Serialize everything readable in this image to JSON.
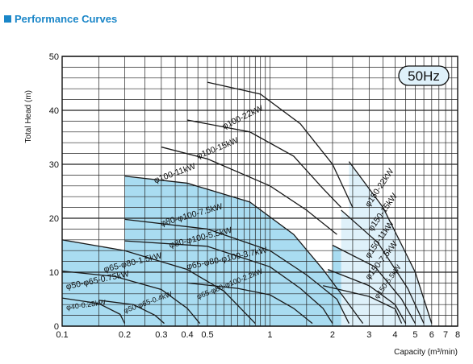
{
  "header": {
    "title": "Performance Curves"
  },
  "chart_data": {
    "type": "area",
    "title": "Performance Curves",
    "frequency": "50Hz",
    "ylabel": "Total Head (m)",
    "xlabel": "Capacity (m³/min)",
    "x_scale": "log",
    "xlim": [
      0.1,
      8
    ],
    "ylim": [
      0,
      50
    ],
    "grid": true,
    "x_ticks": [
      "0.1",
      "0.2",
      "0.3",
      "0.4",
      "0.5",
      "1",
      "2",
      "3",
      "4",
      "5",
      "6",
      "7",
      "8"
    ],
    "y_ticks": [
      "0",
      "10",
      "20",
      "30",
      "40",
      "50"
    ],
    "colors": {
      "shade": "#a9dcf1",
      "shade_light": "#dff1fa",
      "line": "#1a1a1a",
      "title": "#1a86c8"
    },
    "series": [
      {
        "name": "φ40-0.25kW",
        "shaded": true,
        "points": [
          [
            0.1,
            5.2
          ],
          [
            0.15,
            4.2
          ],
          [
            0.19,
            2.2
          ],
          [
            0.2,
            0.5
          ]
        ]
      },
      {
        "name": "φ50-φ65-0.4kW",
        "shaded": false,
        "points": [
          [
            0.15,
            4.8
          ],
          [
            0.22,
            4.0
          ],
          [
            0.28,
            2.0
          ],
          [
            0.31,
            0.5
          ]
        ]
      },
      {
        "name": "φ50-φ65-0.75kW",
        "shaded": true,
        "points": [
          [
            0.1,
            10.2
          ],
          [
            0.18,
            9.2
          ],
          [
            0.3,
            6.8
          ],
          [
            0.4,
            3.3
          ],
          [
            0.46,
            0.5
          ]
        ]
      },
      {
        "name": "φ65-φ80-1.5kW",
        "shaded": true,
        "points": [
          [
            0.1,
            16.0
          ],
          [
            0.2,
            14.0
          ],
          [
            0.4,
            10.5
          ],
          [
            0.6,
            6.5
          ],
          [
            0.85,
            0.5
          ]
        ]
      },
      {
        "name": "φ65-φ80-φ100-2.2kW",
        "shaded": false,
        "points": [
          [
            0.4,
            8.0
          ],
          [
            0.7,
            7.0
          ],
          [
            1.0,
            5.8
          ],
          [
            1.3,
            3.3
          ],
          [
            1.6,
            0.5
          ]
        ]
      },
      {
        "name": "φ65-φ80-φ100-3.7kW",
        "shaded": false,
        "points": [
          [
            0.2,
            15.8
          ],
          [
            0.5,
            14.8
          ],
          [
            1.0,
            11.0
          ],
          [
            1.4,
            7.0
          ],
          [
            1.8,
            3.3
          ],
          [
            2.0,
            0.5
          ]
        ]
      },
      {
        "name": "φ80-φ100-5.5kW",
        "shaded": true,
        "points": [
          [
            0.2,
            19.8
          ],
          [
            0.5,
            18.0
          ],
          [
            1.0,
            14.0
          ],
          [
            1.5,
            9.5
          ],
          [
            2.1,
            5.0
          ],
          [
            2.4,
            0.5
          ]
        ]
      },
      {
        "name": "φ80-φ100-7.5kW",
        "shaded": true,
        "points": [
          [
            0.2,
            27.8
          ],
          [
            0.4,
            26.5
          ],
          [
            0.8,
            23.0
          ],
          [
            1.3,
            17.0
          ],
          [
            1.8,
            10.5
          ],
          [
            2.3,
            5.0
          ],
          [
            2.8,
            0.5
          ]
        ]
      },
      {
        "name": "φ100-11kW",
        "shaded": false,
        "points": [
          [
            0.3,
            33.2
          ],
          [
            0.5,
            31.0
          ],
          [
            1.0,
            26.0
          ],
          [
            1.5,
            21.5
          ],
          [
            2.1,
            17.0
          ]
        ]
      },
      {
        "name": "φ100-15kW",
        "shaded": false,
        "points": [
          [
            0.4,
            38.2
          ],
          [
            0.8,
            36.0
          ],
          [
            1.3,
            31.5
          ],
          [
            1.8,
            25.5
          ],
          [
            2.2,
            22.0
          ]
        ]
      },
      {
        "name": "φ100-22kW",
        "shaded": false,
        "points": [
          [
            0.5,
            45.2
          ],
          [
            0.9,
            43.0
          ],
          [
            1.4,
            37.5
          ],
          [
            2.0,
            30.0
          ],
          [
            2.5,
            22.0
          ]
        ]
      },
      {
        "name": "φ150-5.5kW",
        "shaded": true,
        "points": [
          [
            1.8,
            7.5
          ],
          [
            3.0,
            5.5
          ],
          [
            4.0,
            3.2
          ],
          [
            4.3,
            0.5
          ]
        ]
      },
      {
        "name": "φ150-7.5kW",
        "shaded": true,
        "points": [
          [
            1.9,
            10.5
          ],
          [
            3.0,
            7.5
          ],
          [
            4.0,
            4.0
          ],
          [
            4.5,
            0.5
          ]
        ]
      },
      {
        "name": "φ150-11kW",
        "shaded": true,
        "points": [
          [
            2.0,
            15.0
          ],
          [
            3.2,
            11.0
          ],
          [
            4.3,
            5.0
          ],
          [
            5.0,
            0.5
          ]
        ]
      },
      {
        "name": "φ150-15kW",
        "shaded": true,
        "points": [
          [
            2.2,
            21.5
          ],
          [
            3.3,
            15.5
          ],
          [
            4.6,
            7.0
          ],
          [
            5.5,
            0.5
          ]
        ]
      },
      {
        "name": "φ150-22kW",
        "shaded": true,
        "points": [
          [
            2.4,
            30.5
          ],
          [
            3.5,
            22.0
          ],
          [
            5.0,
            10.0
          ],
          [
            6.0,
            0.5
          ]
        ]
      }
    ]
  }
}
